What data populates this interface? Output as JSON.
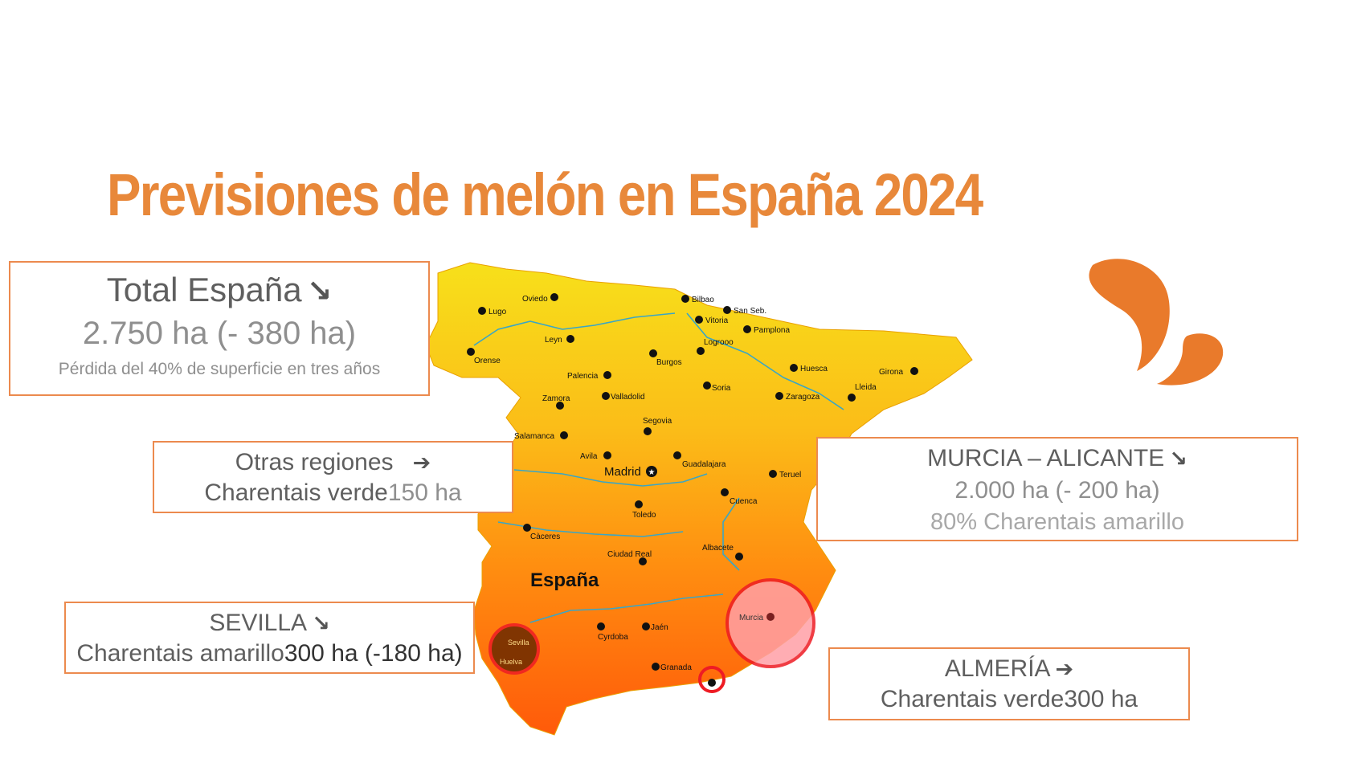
{
  "title": "Previsiones de melón en España 2024",
  "colors": {
    "accent": "#e8883a",
    "box_border": "#ec8a4e",
    "map_top": "#f7e01a",
    "map_bottom": "#ff5a0a",
    "highlight_red": "#ee1c24"
  },
  "icons": {
    "arrow_down_right": "↘",
    "arrow_right": "➔"
  },
  "total": {
    "heading": "Total España",
    "value": "2.750 ha (- 380 ha)",
    "note": "Pérdida del 40% de superficie en tres años"
  },
  "otras": {
    "heading": "Otras regiones",
    "variety": "Charentais verde",
    "value": "150 ha"
  },
  "murcia": {
    "heading": "MURCIA – ALICANTE",
    "value": "2.000 ha (- 200 ha)",
    "note": "80% Charentais amarillo"
  },
  "sevilla": {
    "heading": "SEVILLA",
    "variety": "Charentais amarillo",
    "value_a": "300 h",
    "value_b": "a (-180 ha)"
  },
  "almeria": {
    "heading": "ALMERÍA",
    "variety": "Charentais verde",
    "value": "300 ha"
  },
  "map": {
    "country_label": "España",
    "capital": "Madrid",
    "cities": [
      "Lugo",
      "Oviedo",
      "Bilbao",
      "San Seb.",
      "Vitoria",
      "Pamplona",
      "Leyn",
      "Orense",
      "Burgos",
      "Logrooo",
      "Huesca",
      "Girona",
      "Palencia",
      "Valladolid",
      "Soria",
      "Zaragoza",
      "Lleida",
      "Zamora",
      "Salamanca",
      "Segovia",
      "Avila",
      "Guadalajara",
      "Teruel",
      "Cuenca",
      "Toledo",
      "Càceres",
      "Ciudad Real",
      "Albacete",
      "Cyrdoba",
      "Jaén",
      "Murcia",
      "Sevilla",
      "Huelva",
      "Granada"
    ]
  }
}
